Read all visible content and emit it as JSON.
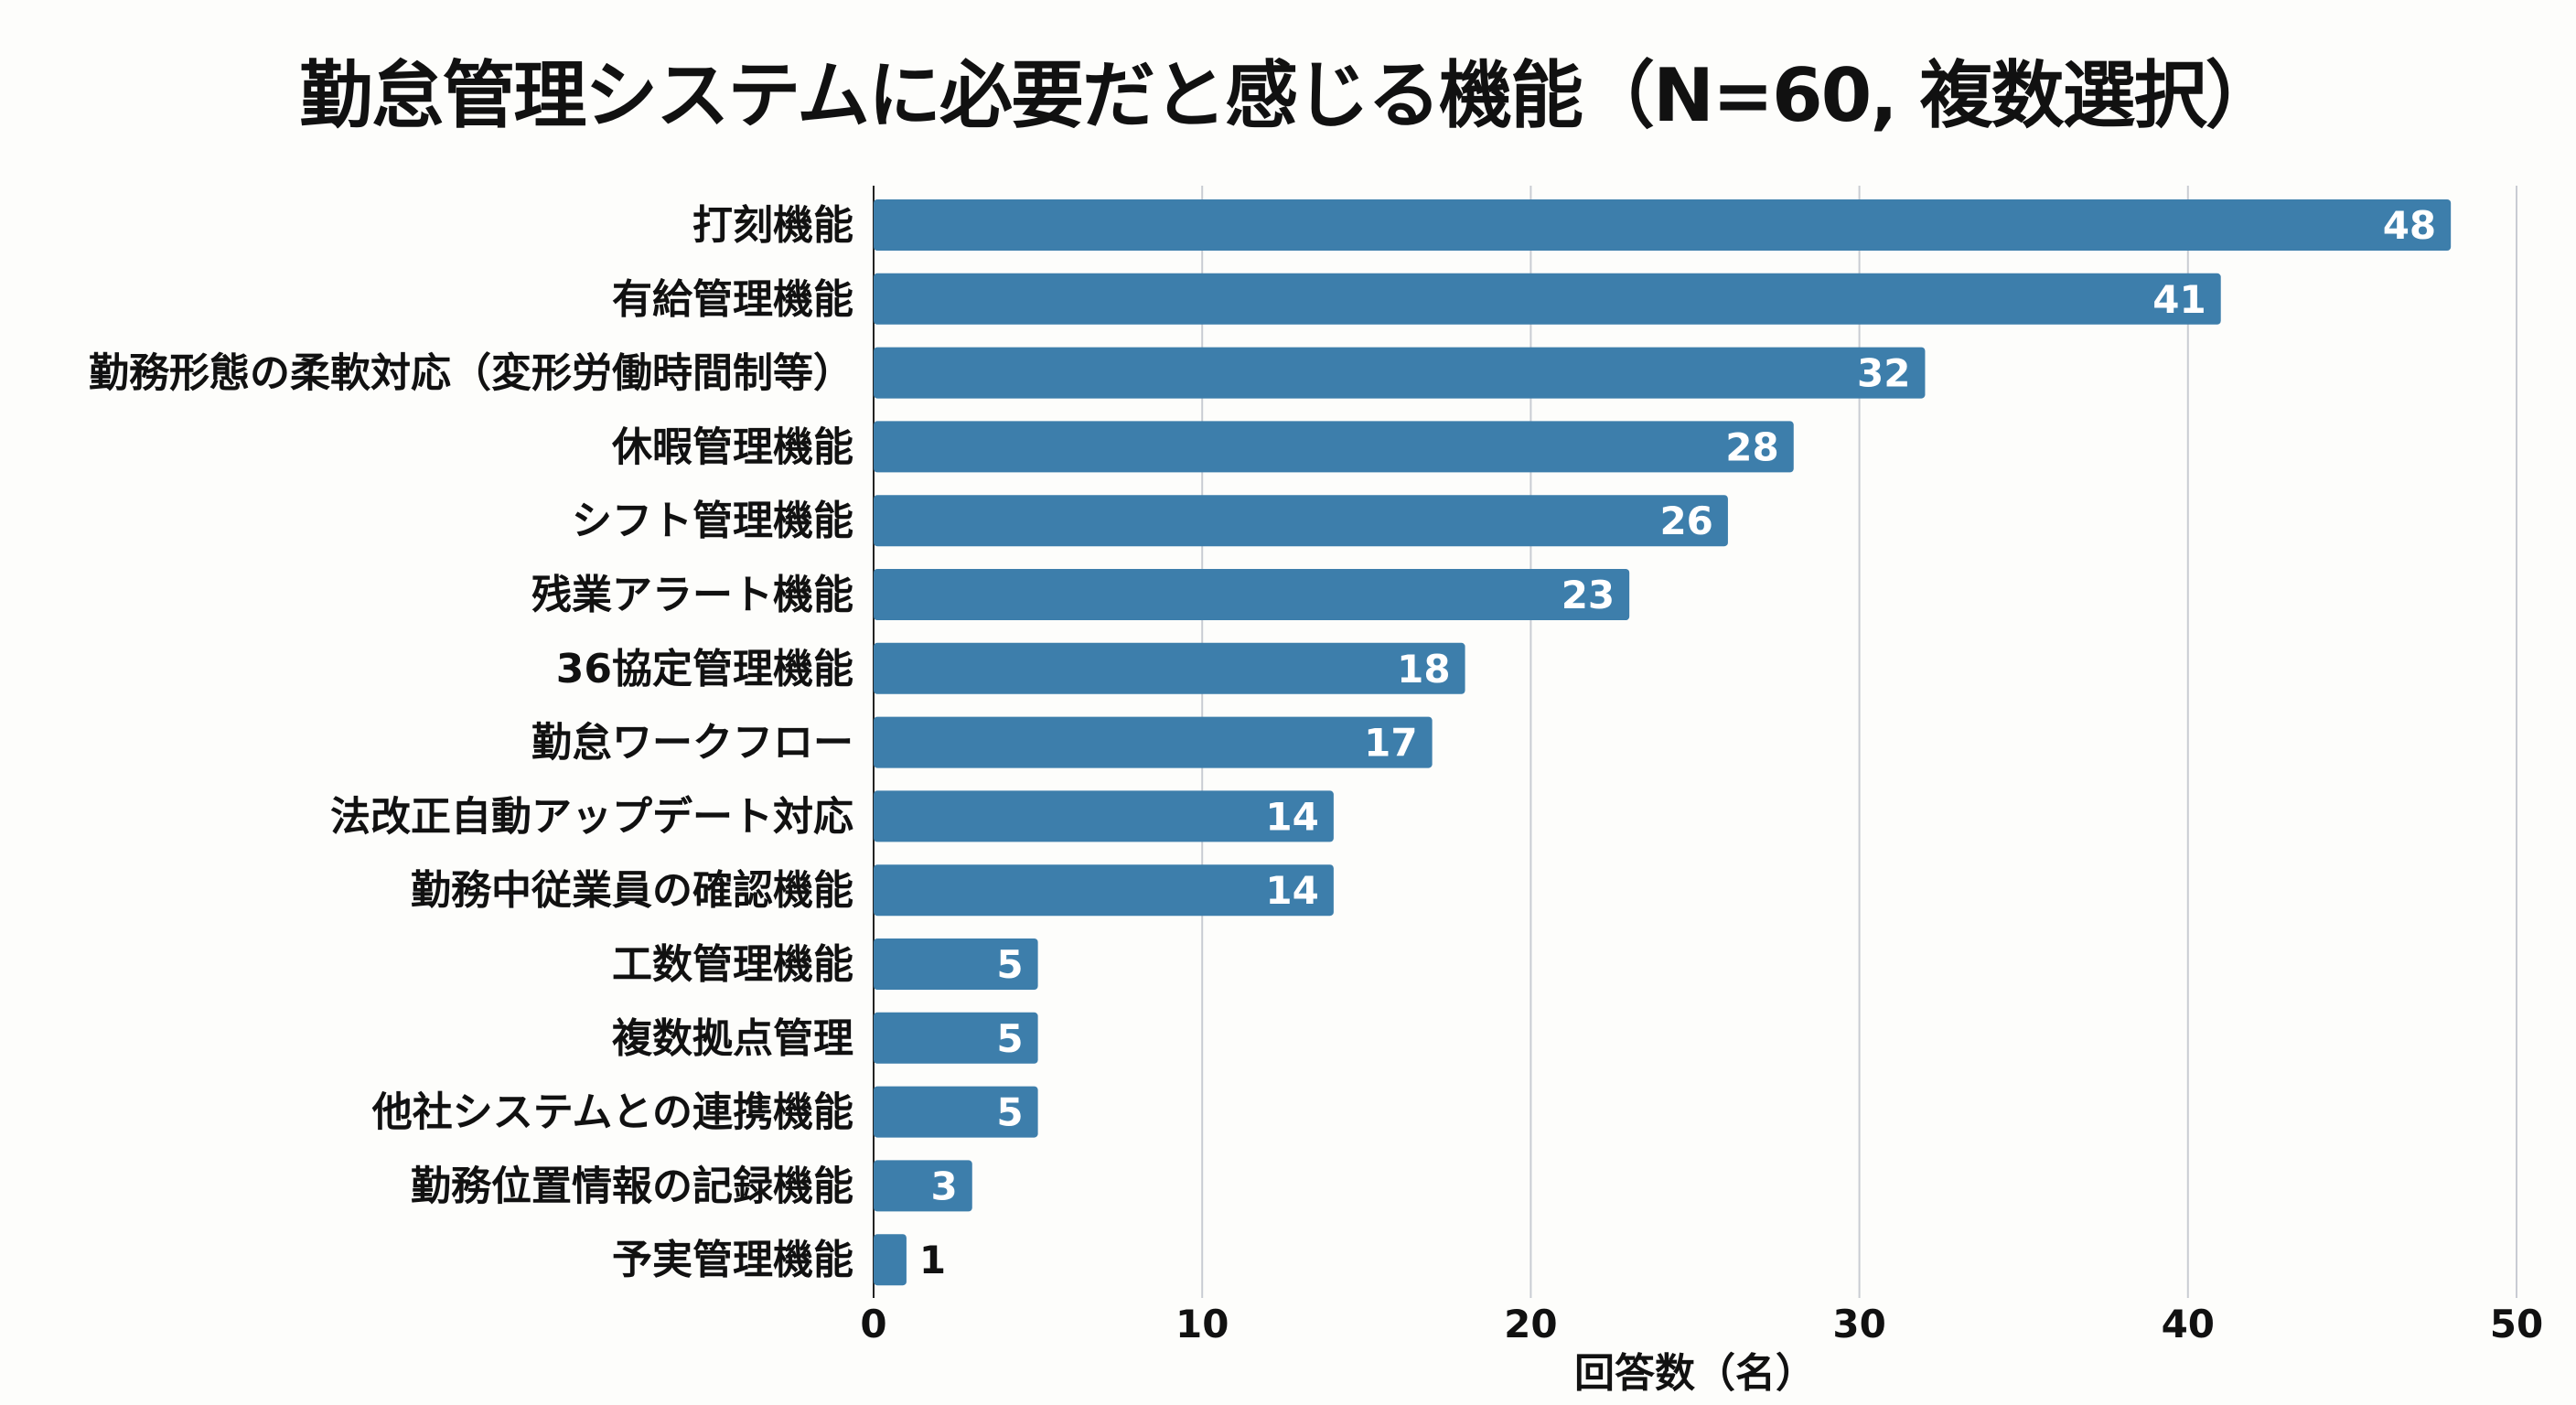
{
  "chart_data": {
    "type": "bar",
    "orientation": "horizontal",
    "title": "勤怠管理システムに必要だと感じる機能（N=60, 複数選択）",
    "xlabel": "回答数（名）",
    "ylabel": "",
    "xlim": [
      0,
      50
    ],
    "xticks": [
      0,
      10,
      20,
      30,
      40,
      50
    ],
    "grid": "vertical",
    "bar_color": "#3d7eab",
    "categories": [
      "打刻機能",
      "有給管理機能",
      "勤務形態の柔軟対応（変形労働時間制等）",
      "休暇管理機能",
      "シフト管理機能",
      "残業アラート機能",
      "36協定管理機能",
      "勤怠ワークフロー",
      "法改正自動アップデート対応",
      "勤務中従業員の確認機能",
      "工数管理機能",
      "複数拠点管理",
      "他社システムとの連携機能",
      "勤務位置情報の記録機能",
      "予実管理機能"
    ],
    "values": [
      48,
      41,
      32,
      28,
      26,
      23,
      18,
      17,
      14,
      14,
      5,
      5,
      5,
      3,
      1
    ]
  }
}
